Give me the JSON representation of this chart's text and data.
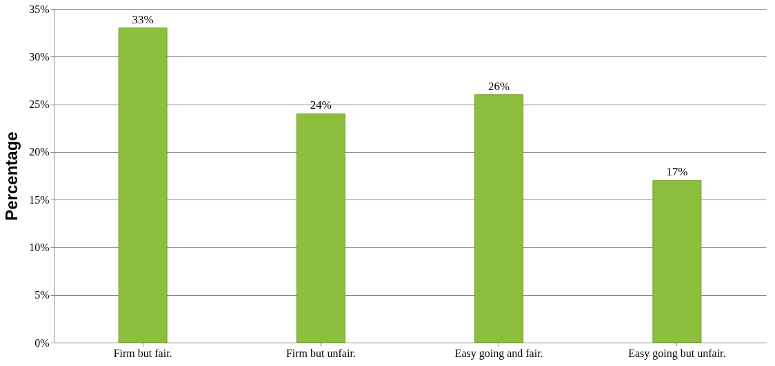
{
  "chart_data": {
    "type": "bar",
    "ylabel": "Percentage",
    "categories": [
      "Firm but fair.",
      "Firm but unfair.",
      "Easy going and fair.",
      "Easy going but unfair."
    ],
    "values": [
      33,
      24,
      26,
      17
    ],
    "color": "#8dbf3e",
    "value_labels": [
      "33%",
      "24%",
      "26%",
      "17%"
    ],
    "ylim": [
      0,
      35
    ],
    "yticks": [
      {
        "value": 0,
        "label": "0%"
      },
      {
        "value": 5,
        "label": "5%"
      },
      {
        "value": 10,
        "label": "10%"
      },
      {
        "value": 15,
        "label": "15%"
      },
      {
        "value": 20,
        "label": "20%"
      },
      {
        "value": 25,
        "label": "25%"
      },
      {
        "value": 30,
        "label": "30%"
      },
      {
        "value": 35,
        "label": "35%"
      }
    ],
    "grid": "y"
  }
}
